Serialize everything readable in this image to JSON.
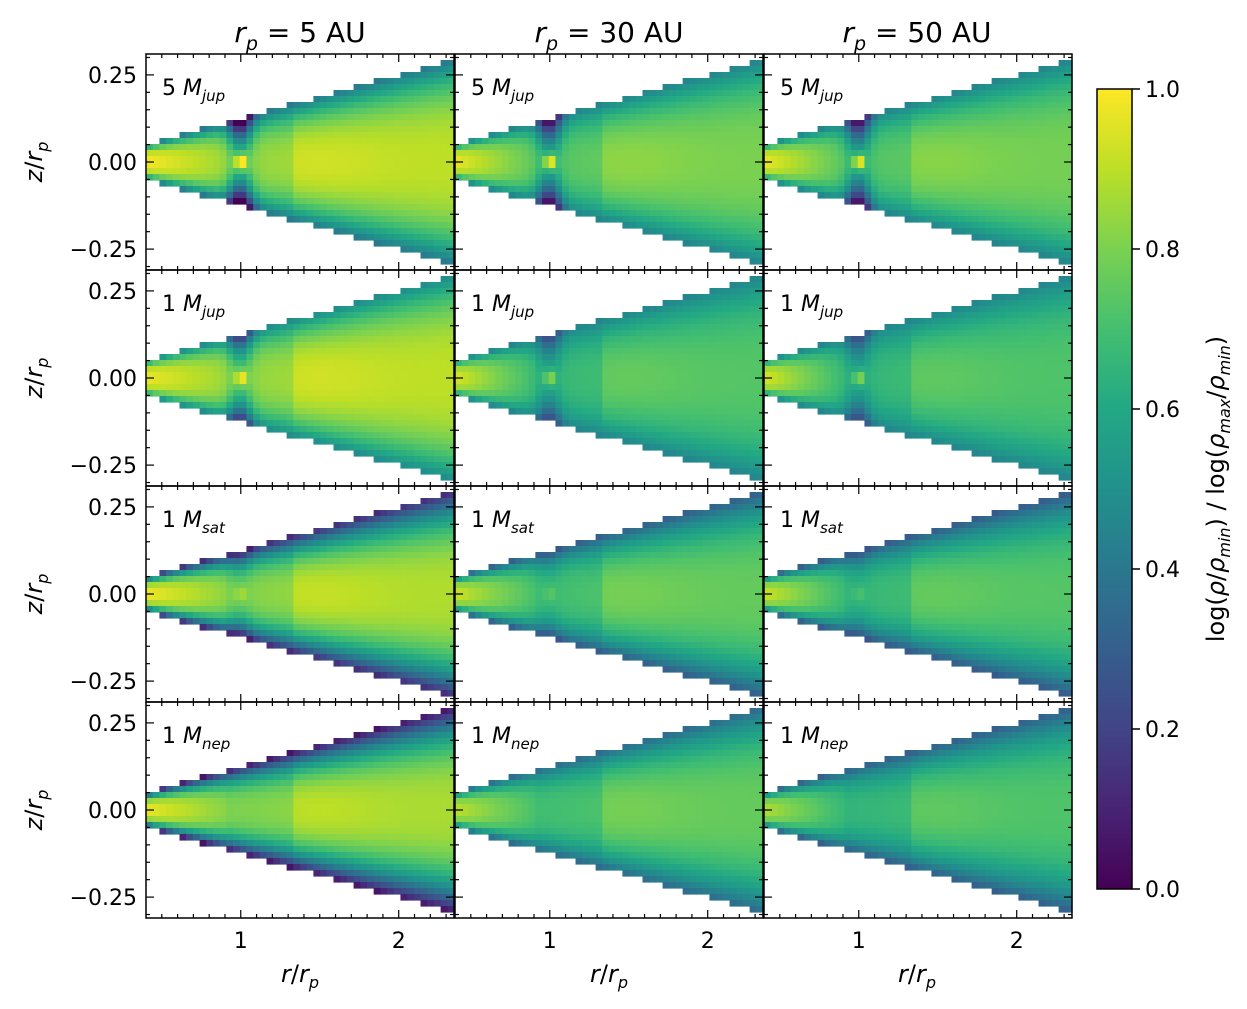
{
  "chart_data": {
    "type": "heatmap",
    "layout": {
      "rows": 4,
      "cols": 3
    },
    "column_titles": [
      {
        "var": "r",
        "sub": "p",
        "rest": " = 5 AU"
      },
      {
        "var": "r",
        "sub": "p",
        "rest": " = 30 AU"
      },
      {
        "var": "r",
        "sub": "p",
        "rest": " = 50 AU"
      }
    ],
    "row_labels": [
      {
        "num": "5",
        "var": "M",
        "sub": "jup"
      },
      {
        "num": "1",
        "var": "M",
        "sub": "jup"
      },
      {
        "num": "1",
        "var": "M",
        "sub": "sat"
      },
      {
        "num": "1",
        "var": "M",
        "sub": "nep"
      }
    ],
    "xlabel": {
      "v1": "r",
      "slash": "/",
      "v2": "r",
      "sub": "p"
    },
    "ylabel": {
      "v1": "z",
      "slash": "/",
      "v2": "r",
      "sub": "p"
    },
    "xlim": [
      0.4,
      2.35
    ],
    "ylim": [
      -0.31,
      0.31
    ],
    "xticks": [
      1,
      2
    ],
    "xtick_labels": [
      "1",
      "2"
    ],
    "yticks": [
      0.25,
      0.0,
      -0.25
    ],
    "ytick_labels": [
      "0.25",
      "0.00",
      "−0.25"
    ],
    "disk_opening_half_angle": 0.125,
    "colorbar": {
      "label": {
        "a": "log(",
        "rho1": "ρ",
        "slash1": "/",
        "rho2": "ρ",
        "sub_min1": "min",
        "mid": ") / log(",
        "rho3": "ρ",
        "sub_max": "max",
        "slash2": "/",
        "rho4": "ρ",
        "sub_min2": "min",
        "end": ")"
      },
      "range": [
        0.0,
        1.0
      ],
      "ticks": [
        0.0,
        0.2,
        0.4,
        0.6,
        0.8,
        1.0
      ],
      "tick_labels": [
        "0.0",
        "0.2",
        "0.4",
        "0.6",
        "0.8",
        "1.0"
      ],
      "colormap": "viridis"
    },
    "panels_fields": {
      "description_params": [
        "inner_midplane",
        "outer_midplane",
        "gap_depth",
        "surface_min"
      ],
      "values": [
        [
          [
            0.99,
            0.9,
            0.95,
            0.4
          ],
          [
            0.97,
            0.8,
            0.95,
            0.45
          ],
          [
            0.97,
            0.79,
            0.95,
            0.45
          ]
        ],
        [
          [
            0.97,
            0.9,
            0.6,
            0.48
          ],
          [
            0.94,
            0.73,
            0.55,
            0.45
          ],
          [
            0.94,
            0.72,
            0.55,
            0.45
          ]
        ],
        [
          [
            0.98,
            0.88,
            0.2,
            0.12
          ],
          [
            0.92,
            0.76,
            0.15,
            0.3
          ],
          [
            0.92,
            0.73,
            0.15,
            0.28
          ]
        ],
        [
          [
            0.97,
            0.87,
            0.0,
            0.05
          ],
          [
            0.9,
            0.76,
            0.0,
            0.35
          ],
          [
            0.88,
            0.72,
            0.0,
            0.3
          ]
        ]
      ]
    }
  }
}
